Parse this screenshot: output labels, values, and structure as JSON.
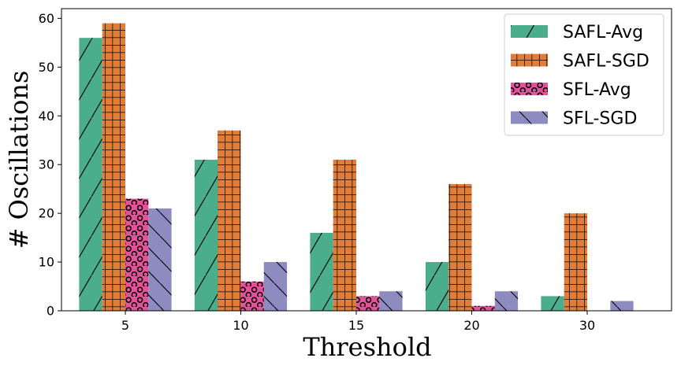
{
  "chart_data": {
    "type": "bar",
    "title": "",
    "xlabel": "Threshold",
    "ylabel": "# Oscillations",
    "categories": [
      "5",
      "10",
      "15",
      "20",
      "30"
    ],
    "yticks": [
      0,
      10,
      20,
      30,
      40,
      50,
      60
    ],
    "ylim": [
      0,
      62
    ],
    "legend_position": "top-right",
    "grid": false,
    "series": [
      {
        "name": "SAFL-Avg",
        "color": "#4aae8c",
        "hatch": "slash",
        "values": [
          56,
          31,
          16,
          10,
          3
        ]
      },
      {
        "name": "SAFL-SGD",
        "color": "#e07d39",
        "hatch": "grid",
        "values": [
          59,
          37,
          31,
          26,
          20
        ]
      },
      {
        "name": "SFL-Avg",
        "color": "#e2539a",
        "hatch": "circles",
        "values": [
          23,
          6,
          3,
          1,
          0
        ]
      },
      {
        "name": "SFL-SGD",
        "color": "#8e8bc0",
        "hatch": "backslash",
        "values": [
          21,
          10,
          4,
          4,
          2
        ]
      }
    ]
  }
}
